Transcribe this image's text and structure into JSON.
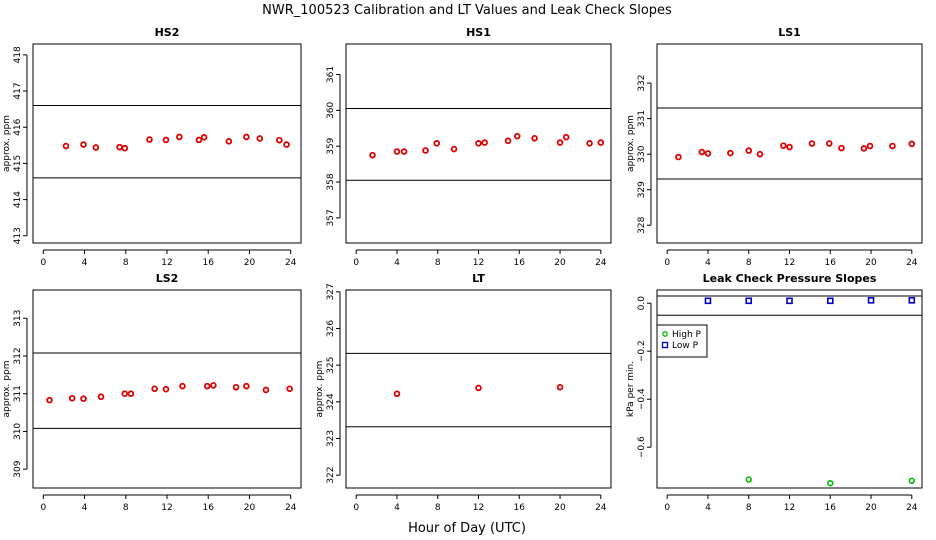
{
  "title": "NWR_100523  Calibration and LT Values and Leak Check Slopes",
  "xlabel": "Hour of Day (UTC)",
  "colors": {
    "cal_points": "#e00000",
    "high_p": "#00bb00",
    "low_p": "#0000cc",
    "ref_lines": "#000000"
  },
  "chart_data": [
    {
      "type": "scatter",
      "title": "HS2",
      "ylabel": "approx. ppm",
      "xlim": [
        -1,
        25
      ],
      "ylim": [
        412.8,
        418.3
      ],
      "xticks": [
        0,
        4,
        8,
        12,
        16,
        20,
        24
      ],
      "yticks": [
        413,
        414,
        415,
        416,
        417,
        418
      ],
      "hlines": [
        414.6,
        416.6
      ],
      "x": [
        2.2,
        3.9,
        5.1,
        7.4,
        7.9,
        10.3,
        11.9,
        13.2,
        15.1,
        15.6,
        18.0,
        19.7,
        21.0,
        22.9,
        23.6
      ],
      "y": [
        415.48,
        415.52,
        415.44,
        415.45,
        415.42,
        415.66,
        415.65,
        415.73,
        415.65,
        415.72,
        415.61,
        415.73,
        415.69,
        415.64,
        415.52
      ]
    },
    {
      "type": "scatter",
      "title": "HS1",
      "ylabel": "",
      "xlim": [
        -1,
        25
      ],
      "ylim": [
        356.3,
        361.85
      ],
      "xticks": [
        0,
        4,
        8,
        12,
        16,
        20,
        24
      ],
      "yticks": [
        357,
        358,
        359,
        360,
        361
      ],
      "hlines": [
        358.05,
        360.05
      ],
      "x": [
        1.6,
        4.0,
        4.7,
        6.8,
        7.9,
        9.6,
        12.0,
        12.6,
        14.9,
        15.8,
        17.5,
        20.0,
        20.6,
        22.9,
        24.0
      ],
      "y": [
        358.75,
        358.85,
        358.85,
        358.88,
        359.08,
        358.92,
        359.08,
        359.1,
        359.15,
        359.28,
        359.22,
        359.1,
        359.25,
        359.08,
        359.1
      ]
    },
    {
      "type": "scatter",
      "title": "LS1",
      "ylabel": "approx. ppm",
      "xlim": [
        -1,
        25
      ],
      "ylim": [
        327.5,
        333.1
      ],
      "xticks": [
        0,
        4,
        8,
        12,
        16,
        20,
        24
      ],
      "yticks": [
        328,
        329,
        330,
        331,
        332
      ],
      "hlines": [
        329.3,
        331.3
      ],
      "x": [
        1.1,
        3.4,
        4.0,
        6.2,
        8.0,
        9.1,
        11.4,
        12.0,
        14.2,
        15.9,
        17.1,
        19.3,
        19.9,
        22.1,
        24.0
      ],
      "y": [
        329.92,
        330.06,
        330.02,
        330.03,
        330.1,
        330.0,
        330.24,
        330.2,
        330.3,
        330.3,
        330.17,
        330.16,
        330.23,
        330.23,
        330.29
      ]
    },
    {
      "type": "scatter",
      "title": "LS2",
      "ylabel": "approx. ppm",
      "xlim": [
        -1,
        25
      ],
      "ylim": [
        308.5,
        313.75
      ],
      "xticks": [
        0,
        4,
        8,
        12,
        16,
        20,
        24
      ],
      "yticks": [
        309,
        310,
        311,
        312,
        313
      ],
      "hlines": [
        310.08,
        312.08
      ],
      "x": [
        0.6,
        2.8,
        3.9,
        5.6,
        7.9,
        8.5,
        10.8,
        11.9,
        13.5,
        15.9,
        16.5,
        18.7,
        19.7,
        21.6,
        23.9
      ],
      "y": [
        310.83,
        310.88,
        310.87,
        310.92,
        311.0,
        311.0,
        311.13,
        311.12,
        311.2,
        311.2,
        311.22,
        311.17,
        311.2,
        311.1,
        311.13
      ]
    },
    {
      "type": "scatter",
      "title": "LT",
      "ylabel": "approx. ppm",
      "xlim": [
        -1,
        25
      ],
      "ylim": [
        321.65,
        327.05
      ],
      "xticks": [
        0,
        4,
        8,
        12,
        16,
        20,
        24
      ],
      "yticks": [
        322,
        323,
        324,
        325,
        326,
        327
      ],
      "hlines": [
        323.32,
        325.32
      ],
      "x": [
        4.0,
        12.0,
        20.0
      ],
      "y": [
        324.22,
        324.38,
        324.4
      ]
    },
    {
      "type": "scatter",
      "title": "Leak Check Pressure Slopes",
      "ylabel": "kPa per min.",
      "xlim": [
        -1,
        25
      ],
      "ylim": [
        -0.77,
        0.055
      ],
      "xticks": [
        0,
        4,
        8,
        12,
        16,
        20,
        24
      ],
      "yticks": [
        0.0,
        -0.2,
        -0.4,
        -0.6
      ],
      "ytick_labels": [
        "0.0",
        "−0.2",
        "−0.4",
        "−0.6"
      ],
      "hlines": [
        0.03,
        -0.05
      ],
      "legend": {
        "placement": "top-left",
        "entries": [
          "High P",
          "Low P"
        ]
      },
      "series": [
        {
          "name": "High P",
          "marker": "circle",
          "x": [
            8,
            16,
            24
          ],
          "y": [
            -0.735,
            -0.75,
            -0.74
          ]
        },
        {
          "name": "Low P",
          "marker": "square",
          "x": [
            4,
            8,
            12,
            16,
            20,
            24
          ],
          "y": [
            0.01,
            0.01,
            0.01,
            0.01,
            0.012,
            0.012
          ]
        }
      ]
    }
  ]
}
